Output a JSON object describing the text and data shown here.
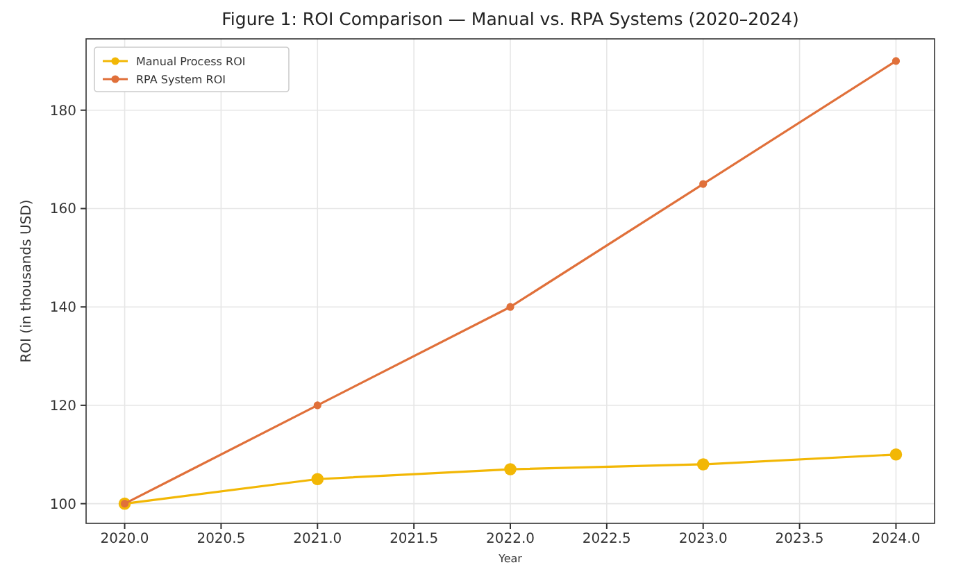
{
  "chart_data": {
    "type": "line",
    "title": "Figure 1: ROI Comparison — Manual vs. RPA Systems (2020–2024)",
    "xlabel": "Year",
    "ylabel": "ROI (in thousands USD)",
    "x": [
      2020,
      2021,
      2022,
      2023,
      2024
    ],
    "series": [
      {
        "name": "Manual Process ROI",
        "color": "#f2b705",
        "values": [
          100,
          105,
          107,
          108,
          110
        ]
      },
      {
        "name": "RPA System ROI",
        "color": "#e0703a",
        "values": [
          100,
          120,
          140,
          165,
          190
        ]
      }
    ],
    "xlim": [
      2019.8,
      2024.2
    ],
    "xticks": [
      {
        "value": 2020,
        "label": "2020.0"
      },
      2020.5,
      {
        "value": 2021,
        "label": "2021.0"
      },
      2021.5,
      {
        "value": 2022,
        "label": "2022.0"
      },
      2022.5,
      {
        "value": 2023,
        "label": "2023.0"
      },
      2023.5,
      {
        "value": 2024,
        "label": "2024.0"
      }
    ],
    "ylim": [
      96,
      194.5
    ],
    "yticks": [
      100,
      120,
      140,
      160,
      180
    ],
    "grid": true,
    "legend": "top left",
    "marker": "circle",
    "line_style": "solid"
  }
}
